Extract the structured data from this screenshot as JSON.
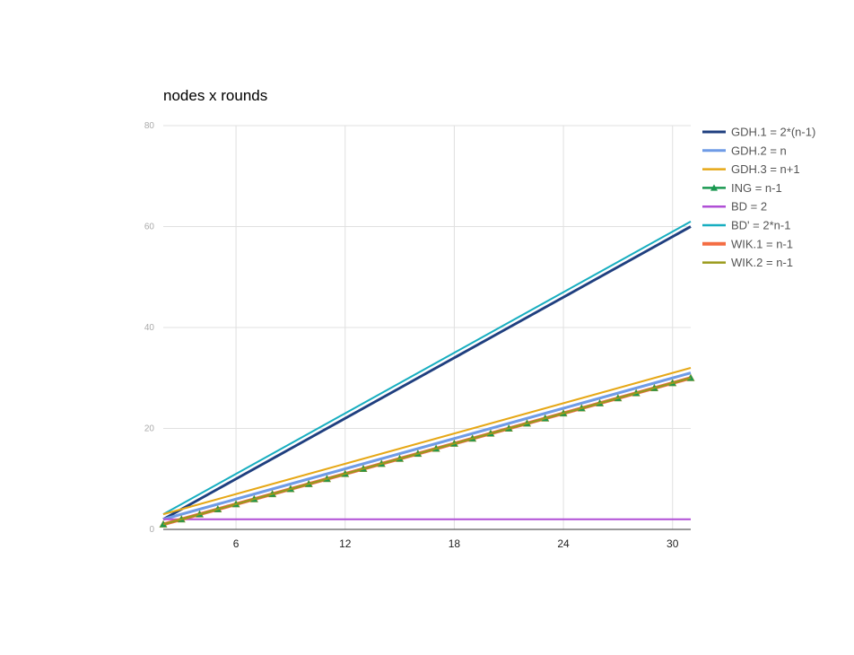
{
  "chart_data": {
    "type": "line",
    "title": "nodes x rounds",
    "xlabel": "",
    "ylabel": "",
    "xlim": [
      2,
      31
    ],
    "ylim": [
      0,
      80
    ],
    "x_ticks": [
      6,
      12,
      18,
      24,
      30
    ],
    "y_ticks": [
      0,
      20,
      40,
      60,
      80
    ],
    "grid": true,
    "legend_position": "right",
    "x": [
      2,
      3,
      4,
      5,
      6,
      7,
      8,
      9,
      10,
      11,
      12,
      13,
      14,
      15,
      16,
      17,
      18,
      19,
      20,
      21,
      22,
      23,
      24,
      25,
      26,
      27,
      28,
      29,
      30,
      31
    ],
    "series": [
      {
        "name": "GDH.1 = 2*(n-1)",
        "color": "#1f3f7f",
        "width": 3,
        "marker": "none",
        "values": [
          2,
          4,
          6,
          8,
          10,
          12,
          14,
          16,
          18,
          20,
          22,
          24,
          26,
          28,
          30,
          32,
          34,
          36,
          38,
          40,
          42,
          44,
          46,
          48,
          50,
          52,
          54,
          56,
          58,
          60
        ]
      },
      {
        "name": "GDH.2 = n",
        "color": "#6f9be6",
        "width": 3,
        "marker": "none",
        "values": [
          2,
          3,
          4,
          5,
          6,
          7,
          8,
          9,
          10,
          11,
          12,
          13,
          14,
          15,
          16,
          17,
          18,
          19,
          20,
          21,
          22,
          23,
          24,
          25,
          26,
          27,
          28,
          29,
          30,
          31
        ]
      },
      {
        "name": "GDH.3 = n+1",
        "color": "#e6a817",
        "width": 2,
        "marker": "none",
        "values": [
          3,
          4,
          5,
          6,
          7,
          8,
          9,
          10,
          11,
          12,
          13,
          14,
          15,
          16,
          17,
          18,
          19,
          20,
          21,
          22,
          23,
          24,
          25,
          26,
          27,
          28,
          29,
          30,
          31,
          32
        ]
      },
      {
        "name": "ING = n-1",
        "color": "#1a9850",
        "width": 2,
        "marker": "triangle",
        "values": [
          1,
          2,
          3,
          4,
          5,
          6,
          7,
          8,
          9,
          10,
          11,
          12,
          13,
          14,
          15,
          16,
          17,
          18,
          19,
          20,
          21,
          22,
          23,
          24,
          25,
          26,
          27,
          28,
          29,
          30
        ]
      },
      {
        "name": "BD = 2",
        "color": "#b04fd6",
        "width": 2,
        "marker": "none",
        "values": [
          2,
          2,
          2,
          2,
          2,
          2,
          2,
          2,
          2,
          2,
          2,
          2,
          2,
          2,
          2,
          2,
          2,
          2,
          2,
          2,
          2,
          2,
          2,
          2,
          2,
          2,
          2,
          2,
          2,
          2
        ]
      },
      {
        "name": "BD' = 2*n-1",
        "color": "#17aec0",
        "width": 2,
        "marker": "none",
        "values": [
          3,
          5,
          7,
          9,
          11,
          13,
          15,
          17,
          19,
          21,
          23,
          25,
          27,
          29,
          31,
          33,
          35,
          37,
          39,
          41,
          43,
          45,
          47,
          49,
          51,
          53,
          55,
          57,
          59,
          61
        ]
      },
      {
        "name": "WIK.1 = n-1",
        "color": "#f46d43",
        "width": 4,
        "marker": "none",
        "values": [
          1,
          2,
          3,
          4,
          5,
          6,
          7,
          8,
          9,
          10,
          11,
          12,
          13,
          14,
          15,
          16,
          17,
          18,
          19,
          20,
          21,
          22,
          23,
          24,
          25,
          26,
          27,
          28,
          29,
          30
        ]
      },
      {
        "name": "WIK.2 = n-1",
        "color": "#9a9a1a",
        "width": 2,
        "marker": "none",
        "values": [
          1,
          2,
          3,
          4,
          5,
          6,
          7,
          8,
          9,
          10,
          11,
          12,
          13,
          14,
          15,
          16,
          17,
          18,
          19,
          20,
          21,
          22,
          23,
          24,
          25,
          26,
          27,
          28,
          29,
          30
        ]
      }
    ],
    "draw_order": [
      0,
      5,
      2,
      1,
      4,
      6,
      3,
      7
    ]
  }
}
